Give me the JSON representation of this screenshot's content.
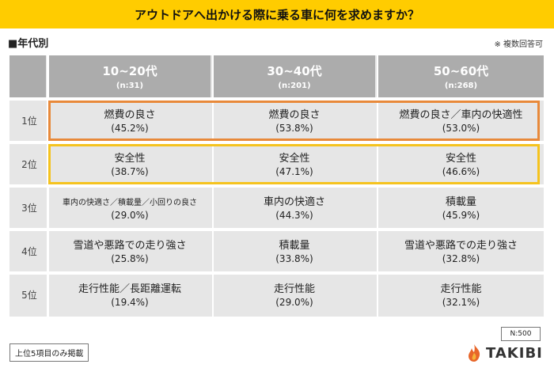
{
  "title": "アウトドアへ出かける際に乗る車に何を求めますか？",
  "subtitle": "■年代別",
  "note": "※ 複数回答可",
  "footnote": "上位5項目のみ掲載",
  "sample": "N:500",
  "brand": "TAKIBI",
  "colors": {
    "title_bg": "#ffcc00",
    "header_bg": "#acacac",
    "cell_bg": "#e6e6e6",
    "highlight_rank1": "#e8893a",
    "highlight_rank2": "#f5c31e",
    "logo_flame": "#e8662a"
  },
  "chart_data": {
    "type": "table",
    "columns": [
      {
        "label": "10~20代",
        "n": "(n:31)"
      },
      {
        "label": "30~40代",
        "n": "(n:201)"
      },
      {
        "label": "50~60代",
        "n": "(n:268)"
      }
    ],
    "rows": [
      {
        "rank": "1位",
        "cells": [
          {
            "item": "燃費の良さ",
            "pct": "(45.2%)"
          },
          {
            "item": "燃費の良さ",
            "pct": "(53.8%)"
          },
          {
            "item": "燃費の良さ／車内の快適性",
            "pct": "(53.0%)"
          }
        ]
      },
      {
        "rank": "2位",
        "cells": [
          {
            "item": "安全性",
            "pct": "(38.7%)"
          },
          {
            "item": "安全性",
            "pct": "(47.1%)"
          },
          {
            "item": "安全性",
            "pct": "(46.6%)"
          }
        ]
      },
      {
        "rank": "3位",
        "cells": [
          {
            "item": "車内の快適さ／積載量／小回りの良さ",
            "pct": "(29.0%)"
          },
          {
            "item": "車内の快適さ",
            "pct": "(44.3%)"
          },
          {
            "item": "積載量",
            "pct": "(45.9%)"
          }
        ]
      },
      {
        "rank": "4位",
        "cells": [
          {
            "item": "雪道や悪路での走り強さ",
            "pct": "(25.8%)"
          },
          {
            "item": "積載量",
            "pct": "(33.8%)"
          },
          {
            "item": "雪道や悪路での走り強さ",
            "pct": "(32.8%)"
          }
        ]
      },
      {
        "rank": "5位",
        "cells": [
          {
            "item": "走行性能／長距離運転",
            "pct": "(19.4%)"
          },
          {
            "item": "走行性能",
            "pct": "(29.0%)"
          },
          {
            "item": "走行性能",
            "pct": "(32.1%)"
          }
        ]
      }
    ]
  }
}
